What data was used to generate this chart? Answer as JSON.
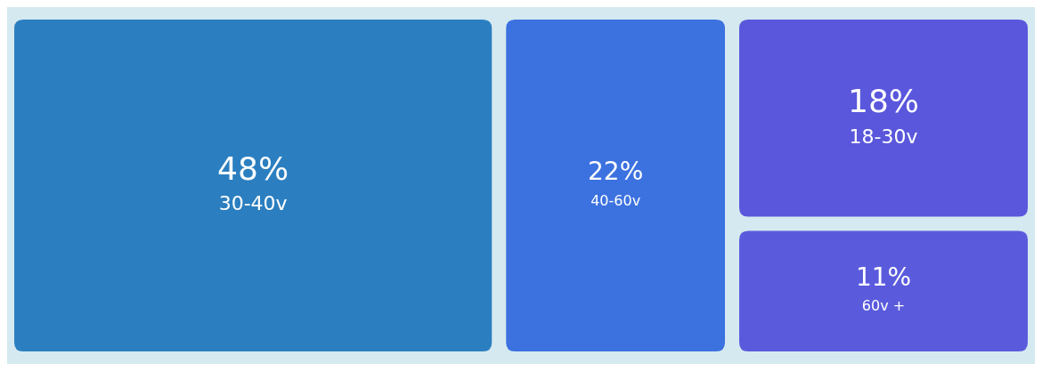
{
  "chart_data": {
    "type": "other",
    "categories": [
      "30-40v",
      "40-60v",
      "18-30v",
      "60v +"
    ],
    "values": [
      48,
      22,
      18,
      11
    ],
    "value_labels": [
      "48%",
      "22%",
      "18%",
      "11%"
    ],
    "colors": [
      "#2b7fc0",
      "#3c72e0",
      "#5a57dc",
      "#5a5bdc"
    ]
  }
}
